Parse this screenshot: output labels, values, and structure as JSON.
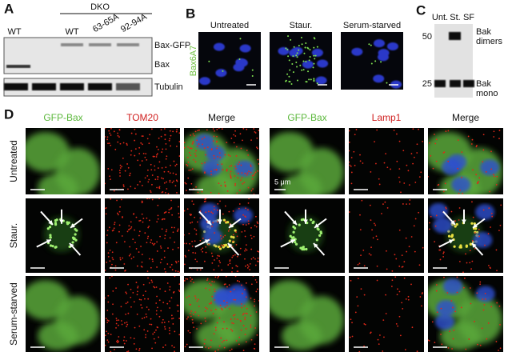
{
  "panel_a": {
    "label": "A",
    "group_label": "DKO",
    "lanes": [
      "WT",
      "WT",
      "63-65A",
      "92-94A"
    ],
    "bands": [
      "Bax-GFP",
      "Bax",
      "Tubulin"
    ]
  },
  "panel_b": {
    "label": "B",
    "stain": "Bax6A7",
    "conditions": [
      "Untreated",
      "Staur.",
      "Serum-starved"
    ]
  },
  "panel_c": {
    "label": "C",
    "lanes": [
      "Unt.",
      "St.",
      "SF"
    ],
    "markers": [
      "50",
      "25"
    ],
    "bands": [
      [
        "Bak",
        "dimers"
      ],
      [
        "Bak",
        "mono"
      ]
    ]
  },
  "panel_d": {
    "label": "D",
    "columns": [
      "GFP-Bax",
      "TOM20",
      "Merge",
      "GFP-Bax",
      "Lamp1",
      "Merge"
    ],
    "rows": [
      "Untreated",
      "Staur.",
      "Serum-starved"
    ],
    "scale": "5 μm"
  }
}
